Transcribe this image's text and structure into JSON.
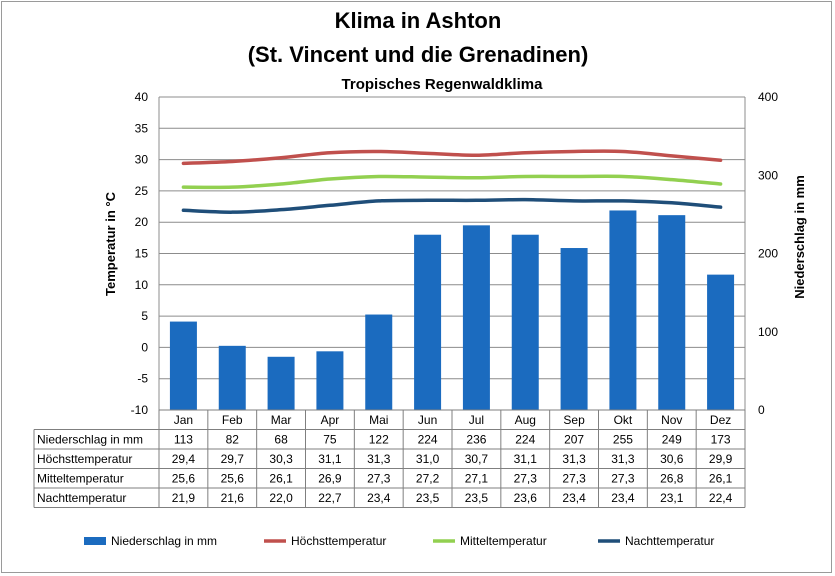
{
  "chart_data": {
    "type": "bar+line",
    "title": "Klima in Ashton",
    "subtitle": "(St. Vincent und die Grenadinen)",
    "climate_type": "Tropisches Regenwaldklima",
    "categories": [
      "Jan",
      "Feb",
      "Mar",
      "Apr",
      "Mai",
      "Jun",
      "Jul",
      "Aug",
      "Sep",
      "Okt",
      "Nov",
      "Dez"
    ],
    "y_left": {
      "label": "Temperatur in °C",
      "range": [
        -10,
        40
      ],
      "ticks": [
        "40",
        "35",
        "30",
        "25",
        "20",
        "15",
        "10",
        "5",
        "0",
        "-5",
        "-10"
      ]
    },
    "y_right": {
      "label": "Niederschlag in mm",
      "range": [
        0,
        400
      ],
      "ticks": [
        "400",
        "300",
        "200",
        "100",
        "0"
      ]
    },
    "grid": "horizontal",
    "legend": "bottom",
    "series": [
      {
        "name": "Niederschlag in mm",
        "kind": "bar",
        "axis": "right",
        "color": "#1b6bbf",
        "values": [
          113,
          82,
          68,
          75,
          122,
          224,
          236,
          224,
          207,
          255,
          249,
          173
        ],
        "labels": [
          "113",
          "82",
          "68",
          "75",
          "122",
          "224",
          "236",
          "224",
          "207",
          "255",
          "249",
          "173"
        ]
      },
      {
        "name": "Höchsttemperatur",
        "kind": "line",
        "axis": "left",
        "color": "#c0504d",
        "values": [
          29.4,
          29.7,
          30.3,
          31.1,
          31.3,
          31.0,
          30.7,
          31.1,
          31.3,
          31.3,
          30.6,
          29.9
        ],
        "labels": [
          "29,4",
          "29,7",
          "30,3",
          "31,1",
          "31,3",
          "31,0",
          "30,7",
          "31,1",
          "31,3",
          "31,3",
          "30,6",
          "29,9"
        ]
      },
      {
        "name": "Mitteltemperatur",
        "kind": "line",
        "axis": "left",
        "color": "#92d050",
        "values": [
          25.6,
          25.6,
          26.1,
          26.9,
          27.3,
          27.2,
          27.1,
          27.3,
          27.3,
          27.3,
          26.8,
          26.1
        ],
        "labels": [
          "25,6",
          "25,6",
          "26,1",
          "26,9",
          "27,3",
          "27,2",
          "27,1",
          "27,3",
          "27,3",
          "27,3",
          "26,8",
          "26,1"
        ]
      },
      {
        "name": "Nachttemperatur",
        "kind": "line",
        "axis": "left",
        "color": "#1f4e79",
        "values": [
          21.9,
          21.6,
          22.0,
          22.7,
          23.4,
          23.5,
          23.5,
          23.6,
          23.4,
          23.4,
          23.1,
          22.4
        ],
        "labels": [
          "21,9",
          "21,6",
          "22,0",
          "22,7",
          "23,4",
          "23,5",
          "23,5",
          "23,6",
          "23,4",
          "23,4",
          "23,1",
          "22,4"
        ]
      }
    ]
  }
}
